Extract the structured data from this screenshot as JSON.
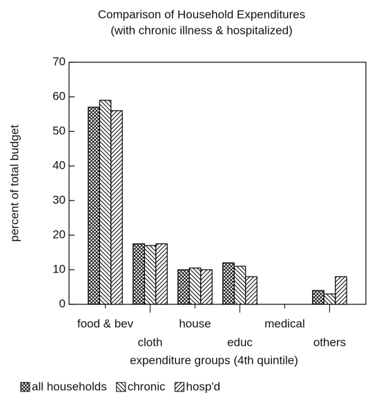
{
  "chart_data": {
    "type": "bar",
    "title": "Comparison of Household Expenditures",
    "subtitle": "(with chronic illness & hospitalized)",
    "x_label": "expenditure groups (4th quintile)",
    "y_label": "percent of total budget",
    "categories": [
      "food & bev",
      "cloth",
      "house",
      "educ",
      "medical",
      "others"
    ],
    "series": [
      {
        "name": "all households",
        "color": "#000000",
        "hatch": "cross",
        "values": [
          57,
          17.5,
          10,
          12,
          0,
          4
        ]
      },
      {
        "name": "chronic",
        "color": "#000000",
        "hatch": "back",
        "values": [
          59,
          17,
          10.5,
          11,
          0,
          3
        ]
      },
      {
        "name": "hosp'd",
        "color": "#000000",
        "hatch": "forward",
        "values": [
          56,
          17.5,
          10,
          8,
          0,
          8
        ]
      }
    ],
    "ylim": [
      0,
      70
    ],
    "yticks": [
      0,
      10,
      20,
      30,
      40,
      50,
      60,
      70
    ],
    "grid": false,
    "legend": "bottom"
  }
}
